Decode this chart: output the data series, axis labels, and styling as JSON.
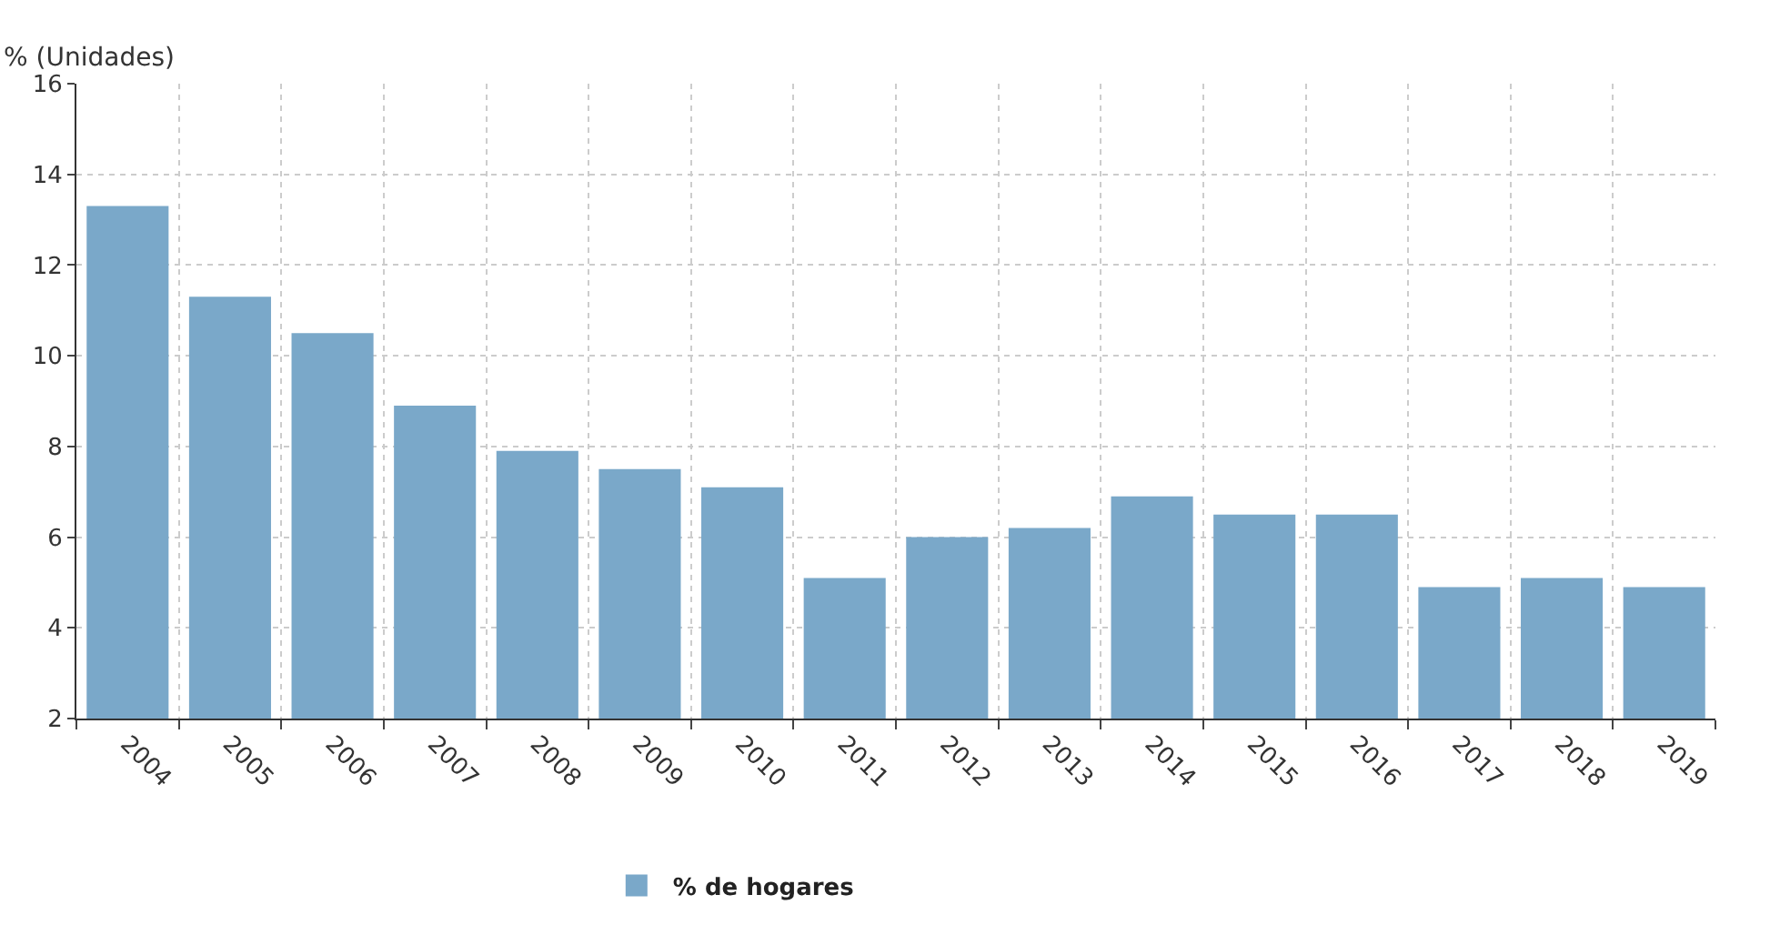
{
  "chart_data": {
    "type": "bar",
    "ylabel": "% (Unidades)",
    "categories": [
      "2004",
      "2005",
      "2006",
      "2007",
      "2008",
      "2009",
      "2010",
      "2011",
      "2012",
      "2013",
      "2014",
      "2015",
      "2016",
      "2017",
      "2018",
      "2019"
    ],
    "series": [
      {
        "name": "% de hogares",
        "color": "#7aa8c9",
        "values": [
          13.3,
          11.3,
          10.5,
          8.9,
          7.9,
          7.5,
          7.1,
          5.1,
          6.0,
          6.2,
          6.9,
          6.5,
          6.5,
          4.9,
          5.1,
          4.9
        ]
      }
    ],
    "ylim": [
      2,
      16
    ],
    "yticks": [
      2,
      4,
      6,
      8,
      10,
      12,
      14,
      16
    ],
    "grid": true,
    "legend": "bottom"
  }
}
